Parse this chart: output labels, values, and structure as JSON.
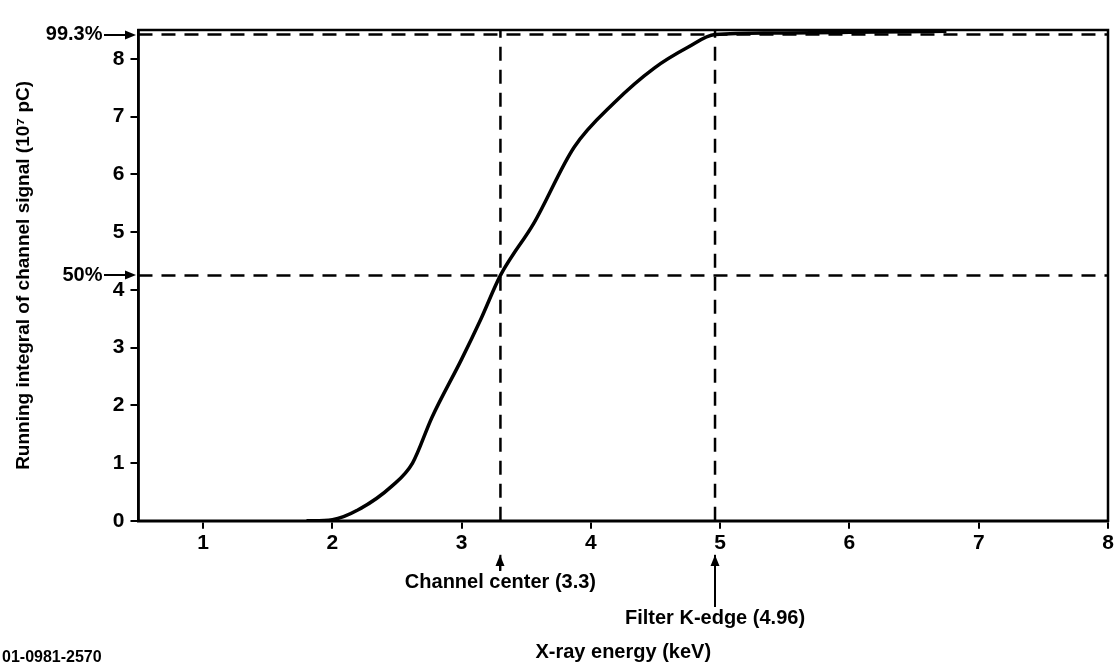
{
  "chart_data": {
    "type": "line",
    "xlabel": "X-ray energy (keV)",
    "ylabel": "Running integral of channel signal (10⁷ pC)",
    "xlim": [
      0.5,
      8
    ],
    "xticks": [
      1,
      2,
      3,
      4,
      5,
      6,
      7,
      8
    ],
    "ylim": [
      0,
      8.5
    ],
    "yticks": [
      0,
      1,
      2,
      3,
      4,
      5,
      6,
      7,
      8
    ],
    "series": [
      {
        "color": "#000000",
        "x": [
          1.8,
          2.0,
          2.2,
          2.46,
          2.62,
          2.77,
          3.0,
          3.15,
          3.3,
          3.56,
          3.87,
          4.18,
          4.49,
          4.75,
          4.96,
          5.5,
          6.0,
          6.75
        ],
        "values": [
          0,
          0.02,
          0.19,
          0.6,
          1.0,
          1.79,
          2.8,
          3.5,
          4.25,
          5.16,
          6.47,
          7.24,
          7.84,
          8.2,
          8.42,
          8.45,
          8.46,
          8.48
        ]
      }
    ],
    "marker": "none",
    "line_style": "solid",
    "legend": false,
    "ref_lines": [
      {
        "axis": "y",
        "value": 8.42,
        "line_style": "dashed",
        "color": "#000000"
      },
      {
        "axis": "y",
        "value": 4.25,
        "line_style": "dashed",
        "color": "#000000"
      },
      {
        "axis": "x",
        "value": 3.3,
        "line_style": "dashed",
        "color": "#000000"
      },
      {
        "axis": "x",
        "value": 4.96,
        "line_style": "dashed",
        "color": "#000000"
      }
    ],
    "annotations": [
      "99.3%",
      "50%",
      "Channel center (3.3)",
      "Filter K-edge (4.96)",
      "01-0981-2570"
    ]
  }
}
